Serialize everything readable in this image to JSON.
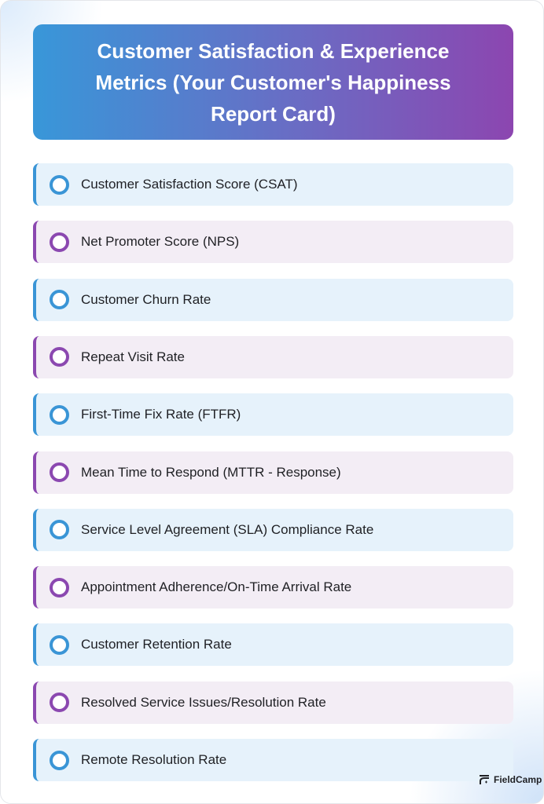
{
  "header": {
    "title": "Customer Satisfaction & Experience Metrics (Your Customer's Happiness Report Card)"
  },
  "colors": {
    "blue": "#3a95d6",
    "purple": "#8b48b0",
    "blue_bg": "#e6f2fb",
    "purple_bg": "#f3edf5"
  },
  "items": [
    {
      "label": "Customer Satisfaction Score (CSAT)",
      "color": "blue"
    },
    {
      "label": "Net Promoter Score (NPS)",
      "color": "purple"
    },
    {
      "label": "Customer Churn Rate",
      "color": "blue"
    },
    {
      "label": "Repeat Visit Rate",
      "color": "purple"
    },
    {
      "label": "First-Time Fix Rate (FTFR)",
      "color": "blue"
    },
    {
      "label": "Mean Time to Respond (MTTR - Response)",
      "color": "purple"
    },
    {
      "label": "Service Level Agreement (SLA) Compliance Rate",
      "color": "blue"
    },
    {
      "label": "Appointment Adherence/On-Time Arrival Rate",
      "color": "purple"
    },
    {
      "label": "Customer Retention Rate",
      "color": "blue"
    },
    {
      "label": "Resolved Service Issues/Resolution Rate",
      "color": "purple"
    },
    {
      "label": "Remote Resolution Rate",
      "color": "blue"
    }
  ],
  "brand": {
    "name": "FieldCamp",
    "icon": "fieldcamp-logo-icon"
  }
}
